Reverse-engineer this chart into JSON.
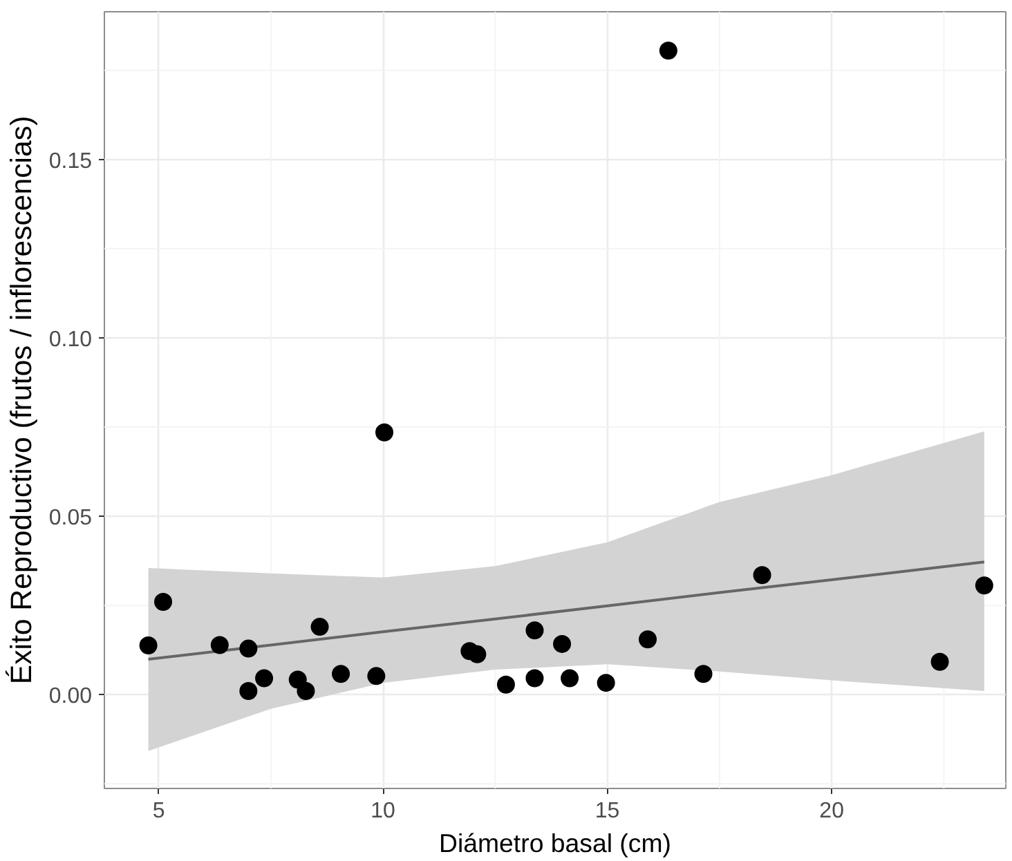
{
  "chart_data": {
    "type": "scatter",
    "xlabel": "Diámetro basal (cm)",
    "ylabel": "Éxito Reproductivo (frutos / inflorescencias)",
    "xlim": [
      3.79,
      23.88
    ],
    "ylim": [
      -0.0263,
      0.1914
    ],
    "xticks": [
      5,
      10,
      15,
      20
    ],
    "yticks": [
      {
        "value": 0,
        "label": "0.00"
      },
      {
        "value": 0.05,
        "label": "0.05"
      },
      {
        "value": 0.1,
        "label": "0.10"
      },
      {
        "value": 0.15,
        "label": "0.15"
      }
    ],
    "grid": true,
    "series": [
      {
        "type": "line",
        "color": "#666666",
        "x": [
          4.77,
          7.5,
          10,
          12.5,
          15,
          17.5,
          20,
          23.4
        ],
        "values": [
          0.0099,
          0.0139,
          0.0176,
          0.0212,
          0.0249,
          0.0286,
          0.0322,
          0.0372
        ],
        "lower": [
          -0.0158,
          -0.004,
          0.0033,
          0.007,
          0.0085,
          0.0065,
          0.004,
          0.001
        ],
        "upper": [
          0.0355,
          0.034,
          0.0328,
          0.036,
          0.0427,
          0.054,
          0.0615,
          0.0738
        ]
      },
      {
        "marker": "circle",
        "color": "#000000",
        "x": [
          4.77,
          5.1,
          6.36,
          7.0,
          7.0,
          7.35,
          8.1,
          8.28,
          8.59,
          9.06,
          9.85,
          10.03,
          11.93,
          12.1,
          12.74,
          13.38,
          13.38,
          13.99,
          14.16,
          14.97,
          15.9,
          16.36,
          17.14,
          18.45,
          22.41,
          23.4
        ],
        "values": [
          0.0138,
          0.026,
          0.0139,
          0.0129,
          0.001,
          0.0046,
          0.0042,
          0.001,
          0.019,
          0.0058,
          0.0052,
          0.0735,
          0.0122,
          0.0113,
          0.0028,
          0.018,
          0.0046,
          0.0142,
          0.0046,
          0.0033,
          0.0155,
          0.1805,
          0.0058,
          0.0335,
          0.0092,
          0.0306
        ]
      }
    ]
  }
}
